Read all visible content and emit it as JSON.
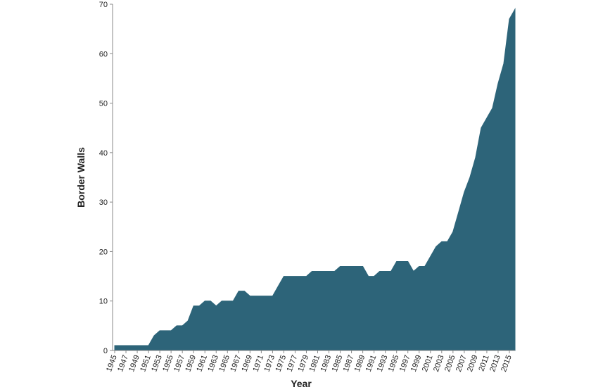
{
  "chart_data": {
    "type": "area",
    "x_label": "Year",
    "y_label": "Border Walls",
    "color": "#2d6479",
    "x": [
      1945,
      1946,
      1947,
      1948,
      1949,
      1950,
      1951,
      1952,
      1953,
      1954,
      1955,
      1956,
      1957,
      1958,
      1959,
      1960,
      1961,
      1962,
      1963,
      1964,
      1965,
      1966,
      1967,
      1968,
      1969,
      1970,
      1971,
      1972,
      1973,
      1974,
      1975,
      1976,
      1977,
      1978,
      1979,
      1980,
      1981,
      1982,
      1983,
      1984,
      1985,
      1986,
      1987,
      1988,
      1989,
      1990,
      1991,
      1992,
      1993,
      1994,
      1995,
      1996,
      1997,
      1998,
      1999,
      2000,
      2001,
      2002,
      2003,
      2004,
      2005,
      2006,
      2007,
      2008,
      2009,
      2010,
      2011,
      2012,
      2013,
      2014,
      2015,
      2016
    ],
    "values": [
      1,
      1,
      1,
      1,
      1,
      1,
      1,
      3,
      4,
      4,
      4,
      5,
      5,
      6,
      9,
      9,
      10,
      10,
      9,
      10,
      10,
      10,
      12,
      12,
      11,
      11,
      11,
      11,
      11,
      13,
      15,
      15,
      15,
      15,
      15,
      16,
      16,
      16,
      16,
      16,
      17,
      17,
      17,
      17,
      17,
      15,
      15,
      16,
      16,
      16,
      18,
      18,
      18,
      16,
      17,
      17,
      19,
      21,
      22,
      22,
      24,
      28,
      32,
      35,
      39,
      45,
      47,
      49,
      54,
      58,
      67,
      69
    ],
    "xlim": [
      1945,
      2016
    ],
    "xticks": [
      1945,
      1947,
      1949,
      1951,
      1953,
      1955,
      1957,
      1959,
      1961,
      1963,
      1965,
      1967,
      1969,
      1971,
      1973,
      1975,
      1977,
      1979,
      1981,
      1983,
      1985,
      1987,
      1989,
      1991,
      1993,
      1995,
      1997,
      1999,
      2001,
      2003,
      2005,
      2007,
      2009,
      2011,
      2013,
      2015
    ],
    "ylim": [
      0,
      70
    ],
    "yticks": [
      0,
      10,
      20,
      30,
      40,
      50,
      60,
      70
    ],
    "grid": false
  }
}
